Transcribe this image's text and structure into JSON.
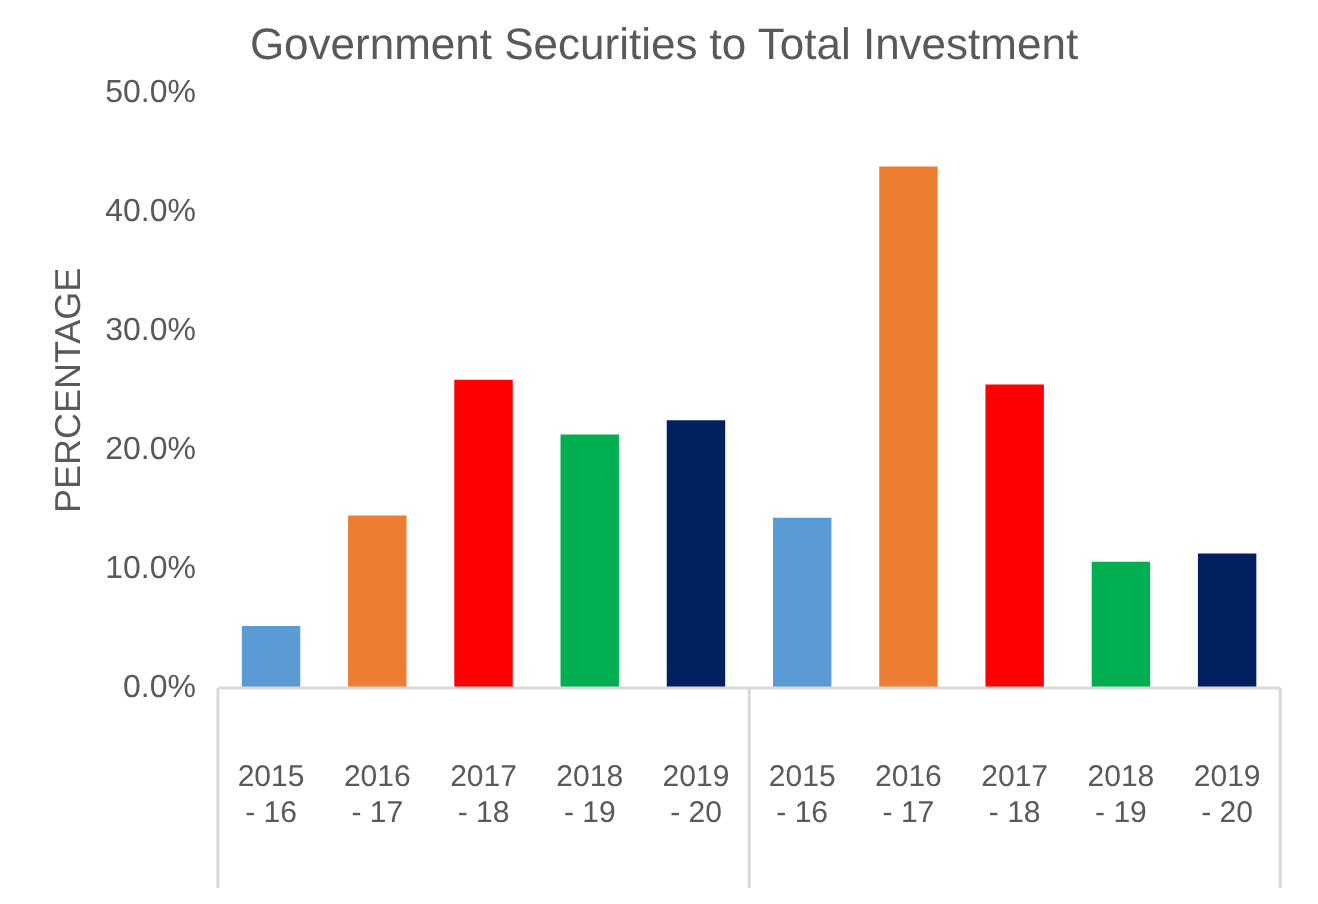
{
  "chart_data": {
    "type": "bar",
    "title": "Government Securities to Total Investment",
    "ylabel": "PERCENTAGE",
    "categories": [
      "2015 - 16",
      "2016 - 17",
      "2017 - 18",
      "2018 - 19",
      "2019 - 20",
      "2015 - 16",
      "2016 - 17",
      "2017 - 18",
      "2018 - 19",
      "2019 - 20"
    ],
    "values": [
      5.2,
      14.5,
      25.9,
      21.3,
      22.5,
      14.3,
      43.8,
      25.5,
      10.6,
      11.3
    ],
    "colors": [
      "#5b9bd5",
      "#ed7d31",
      "#ff0000",
      "#00b050",
      "#002060",
      "#5b9bd5",
      "#ed7d31",
      "#ff0000",
      "#00b050",
      "#002060"
    ],
    "ylim": [
      0,
      50
    ],
    "yticks": [
      {
        "value": 0,
        "label": "0.0%"
      },
      {
        "value": 10,
        "label": "10.0%"
      },
      {
        "value": 20,
        "label": "20.0%"
      },
      {
        "value": 30,
        "label": "30.0%"
      },
      {
        "value": 40,
        "label": "40.0%"
      },
      {
        "value": 50,
        "label": "50.0%"
      }
    ],
    "grid": false,
    "legend": false
  }
}
